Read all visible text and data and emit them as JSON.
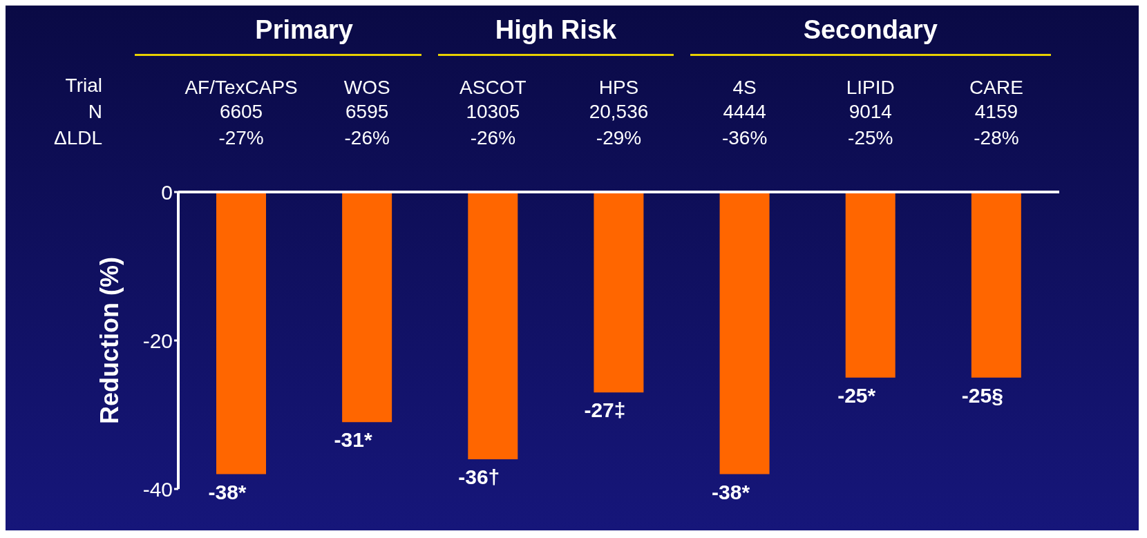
{
  "chart_data": {
    "type": "bar",
    "ylabel": "Reduction (%)",
    "categories": [
      "AF/TexCAPS",
      "WOS",
      "ASCOT",
      "HPS",
      "4S",
      "LIPID",
      "CARE"
    ],
    "values": [
      -38,
      -31,
      -36,
      -27,
      -38,
      -25,
      -25
    ],
    "value_labels": [
      "-38*",
      "-31*",
      "-36†",
      "-27‡",
      "-38*",
      "-25*",
      "-25§"
    ],
    "color": "#ff6600",
    "ylim": [
      -40,
      0
    ],
    "yticks": [
      0,
      -20,
      -40
    ],
    "grid": false,
    "annotations": [
      "Primary",
      "High Risk",
      "Secondary",
      "Trial",
      "N",
      "ΔLDL",
      "6605",
      "6595",
      "10305",
      "20,536",
      "4444",
      "9014",
      "4159",
      "-27%",
      "-26%",
      "-26%",
      "-29%",
      "-36%",
      "-25%",
      "-28%"
    ]
  }
}
